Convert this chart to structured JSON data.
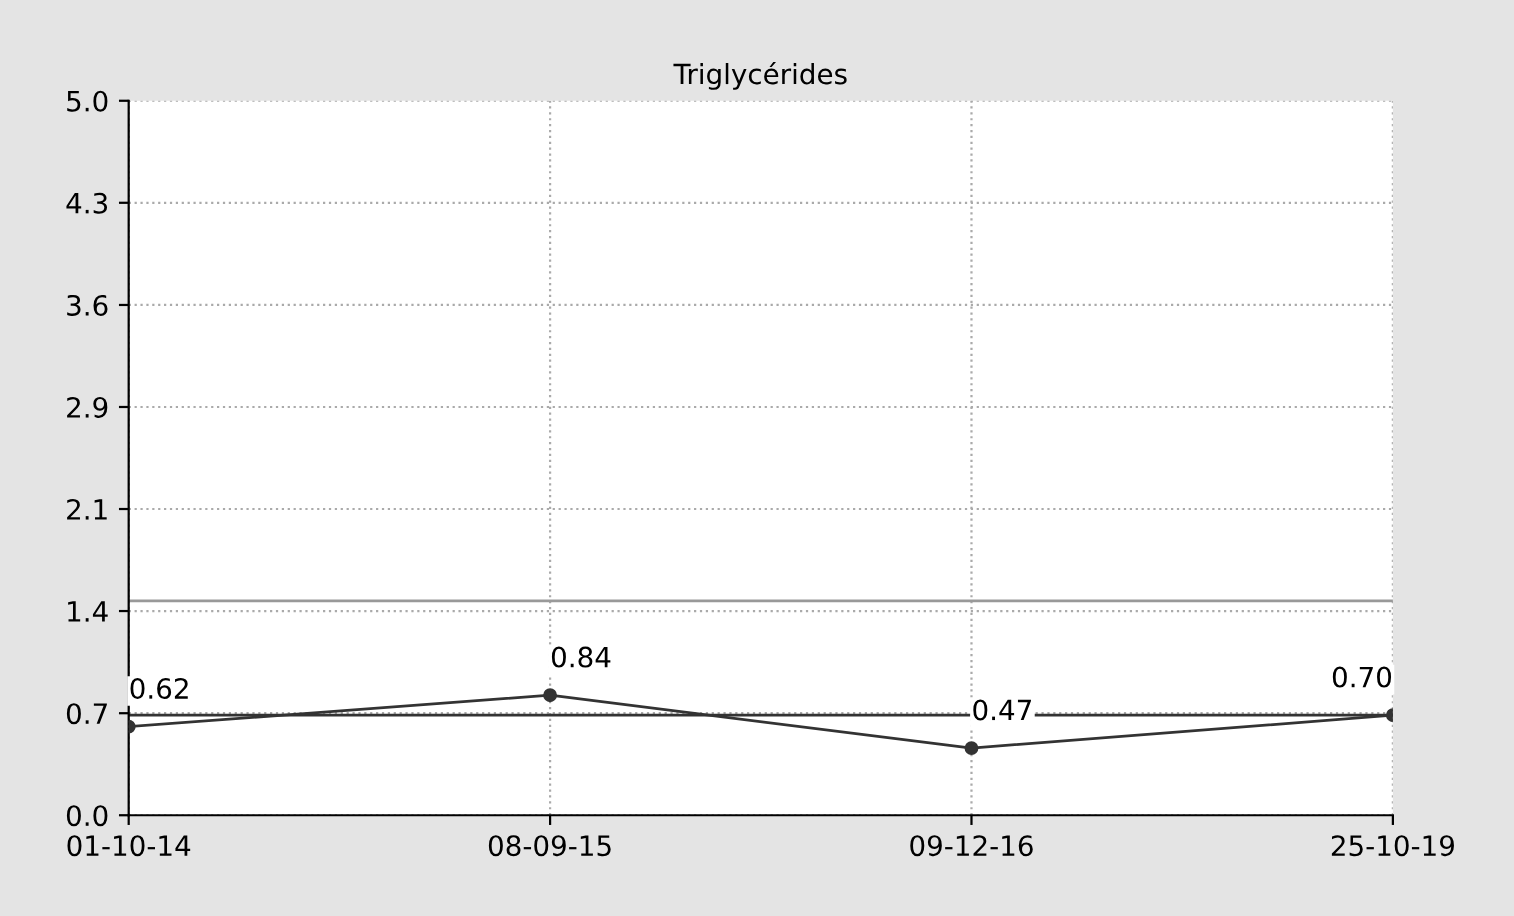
{
  "chart_data": {
    "type": "line",
    "title": "Triglycérides",
    "categories": [
      "01-10-14",
      "08-09-15",
      "09-12-16",
      "25-10-19"
    ],
    "series": [
      {
        "color": "#333333",
        "values": [
          0.62,
          0.84,
          0.47,
          0.7
        ],
        "value_labels": [
          "0.62",
          "0.84",
          "0.47",
          "0.70"
        ]
      }
    ],
    "ylim": [
      0,
      5
    ],
    "yticks": [
      {
        "value": 0,
        "label": "0.0"
      },
      {
        "value": 0.714,
        "label": "0.7"
      },
      {
        "value": 1.429,
        "label": "1.4"
      },
      {
        "value": 2.143,
        "label": "2.1"
      },
      {
        "value": 2.857,
        "label": "2.9"
      },
      {
        "value": 3.571,
        "label": "3.6"
      },
      {
        "value": 4.286,
        "label": "4.3"
      },
      {
        "value": 5,
        "label": "5.0"
      }
    ],
    "ref_lines": [
      {
        "axis": "y",
        "value": 0.7,
        "color": "#333333"
      },
      {
        "axis": "y",
        "value": 1.5,
        "color": "#999999"
      }
    ],
    "grid": true,
    "marker": "circle",
    "line_style": "solid",
    "legend": false
  }
}
